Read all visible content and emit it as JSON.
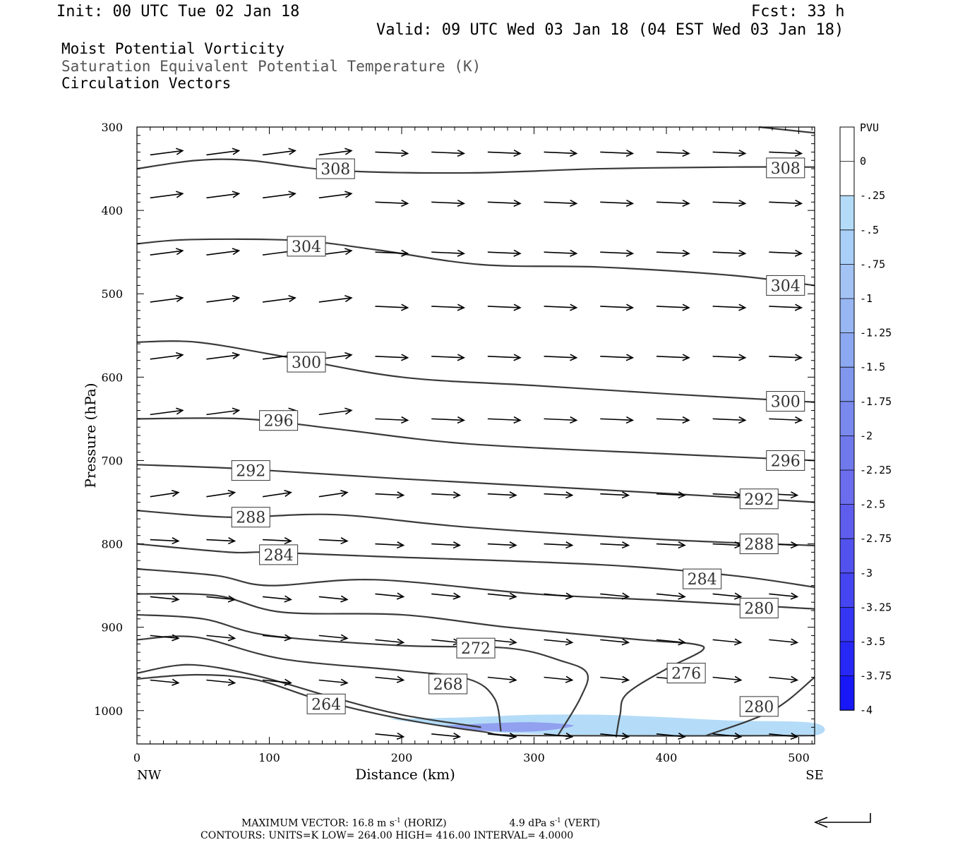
{
  "header": {
    "init": "Init: 00 UTC Tue 02 Jan 18",
    "fcst": "Fcst:   33 h",
    "valid": "Valid: 09 UTC Wed 03 Jan 18 (04 EST Wed 03 Jan 18)",
    "line1": "Moist Potential Vorticity",
    "line2": "Saturation Equivalent Potential Temperature (K)",
    "line3": "Circulation Vectors"
  },
  "footer": {
    "max_prefix": "MAXIMUM VECTOR:  16.8 m s",
    "exp": "-1",
    "horiz": " (HORIZ)",
    "vert_prefix": "4.9 dPa s",
    "vert": " (VERT)",
    "contours": "CONTOURS:  UNITS=K  LOW=  264.00       HIGH=  416.00       INTERVAL=    4.0000"
  },
  "colors": {
    "contour": "#3a3a3a",
    "vector": "#000000",
    "pv_scale": [
      "#ffffff",
      "#ffffff",
      "#b4dcf8",
      "#a9cff8",
      "#a4c3f5",
      "#98b6f2",
      "#8ca8f0",
      "#8197ee",
      "#7a89ee",
      "#7079ec",
      "#6c6cee",
      "#5e5dee",
      "#5252ef",
      "#4545f1",
      "#3535f4",
      "#2727f6",
      "#1717f8"
    ]
  },
  "chart_data": {
    "type": "cross-section",
    "xlabel": "Distance (km)",
    "ylabel": "Pressure (hPa)",
    "xlim": [
      0,
      512
    ],
    "ylim": [
      300,
      1040
    ],
    "x_ticks": [
      0,
      100,
      200,
      300,
      400,
      500
    ],
    "y_ticks": [
      300,
      400,
      500,
      600,
      700,
      800,
      900,
      1000
    ],
    "x_end_labels": [
      "NW",
      "SE"
    ],
    "colorbar": {
      "title": "PVU",
      "labels": [
        "0",
        "-.25",
        "-.5",
        "-.75",
        "-1",
        "-1.25",
        "-1.5",
        "-1.75",
        "-2",
        "-2.25",
        "-2.5",
        "-2.75",
        "-3",
        "-3.25",
        "-3.5",
        "-3.75",
        "-4"
      ]
    },
    "contours": [
      {
        "label": "308",
        "points": [
          [
            0,
            350
          ],
          [
            45,
            340
          ],
          [
            85,
            340
          ],
          [
            150,
            352
          ],
          [
            250,
            355
          ],
          [
            350,
            350
          ],
          [
            450,
            348
          ],
          [
            512,
            348
          ]
        ],
        "labels_at": [
          [
            150,
            350
          ],
          [
            490,
            349
          ]
        ]
      },
      {
        "label": "304",
        "points": [
          [
            0,
            440
          ],
          [
            40,
            435
          ],
          [
            120,
            436
          ],
          [
            180,
            447
          ],
          [
            260,
            465
          ],
          [
            350,
            468
          ],
          [
            450,
            478
          ],
          [
            512,
            490
          ]
        ],
        "labels_at": [
          [
            128,
            443
          ],
          [
            490,
            490
          ]
        ]
      },
      {
        "label": "300",
        "points": [
          [
            0,
            558
          ],
          [
            45,
            558
          ],
          [
            110,
            575
          ],
          [
            200,
            600
          ],
          [
            300,
            610
          ],
          [
            400,
            620
          ],
          [
            512,
            630
          ]
        ],
        "labels_at": [
          [
            128,
            582
          ],
          [
            490,
            629
          ]
        ]
      },
      {
        "label": "296",
        "points": [
          [
            0,
            650
          ],
          [
            80,
            650
          ],
          [
            150,
            662
          ],
          [
            250,
            680
          ],
          [
            400,
            692
          ],
          [
            512,
            700
          ]
        ],
        "labels_at": [
          [
            107,
            652
          ],
          [
            490,
            700
          ]
        ]
      },
      {
        "label": "292",
        "points": [
          [
            0,
            705
          ],
          [
            80,
            710
          ],
          [
            200,
            722
          ],
          [
            350,
            735
          ],
          [
            512,
            750
          ]
        ],
        "labels_at": [
          [
            86,
            712
          ],
          [
            470,
            746
          ]
        ]
      },
      {
        "label": "288",
        "points": [
          [
            0,
            760
          ],
          [
            70,
            768
          ],
          [
            150,
            765
          ],
          [
            250,
            780
          ],
          [
            400,
            795
          ],
          [
            512,
            802
          ]
        ],
        "labels_at": [
          [
            86,
            768
          ],
          [
            470,
            800
          ]
        ]
      },
      {
        "label": "284",
        "points": [
          [
            0,
            800
          ],
          [
            70,
            810
          ],
          [
            100,
            810
          ],
          [
            180,
            815
          ],
          [
            350,
            825
          ],
          [
            450,
            838
          ],
          [
            512,
            852
          ]
        ],
        "labels_at": [
          [
            107,
            813
          ],
          [
            427,
            842
          ]
        ]
      },
      {
        "label": "280",
        "points": [
          [
            0,
            830
          ],
          [
            60,
            838
          ],
          [
            100,
            850
          ],
          [
            180,
            843
          ],
          [
            300,
            860
          ],
          [
            400,
            868
          ],
          [
            512,
            878
          ]
        ],
        "labels_at": [
          [
            470,
            877
          ],
          [
            470,
            995
          ]
        ]
      },
      {
        "label": "276",
        "points": [
          [
            0,
            860
          ],
          [
            60,
            862
          ],
          [
            110,
            882
          ],
          [
            200,
            885
          ],
          [
            280,
            900
          ],
          [
            380,
            915
          ],
          [
            420,
            920
          ],
          [
            427,
            928
          ],
          [
            400,
            950
          ],
          [
            370,
            980
          ],
          [
            365,
            1005
          ],
          [
            362,
            1032
          ]
        ],
        "labels_at": [
          [
            415,
            955
          ]
        ]
      },
      {
        "label": "272",
        "points": [
          [
            0,
            885
          ],
          [
            50,
            890
          ],
          [
            100,
            910
          ],
          [
            200,
            922
          ],
          [
            280,
            925
          ],
          [
            320,
            940
          ],
          [
            340,
            955
          ],
          [
            335,
            985
          ],
          [
            318,
            1030
          ]
        ],
        "labels_at": [
          [
            256,
            925
          ]
        ]
      },
      {
        "label": "268",
        "points": [
          [
            0,
            915
          ],
          [
            45,
            912
          ],
          [
            110,
            938
          ],
          [
            200,
            952
          ],
          [
            250,
            962
          ],
          [
            270,
            985
          ],
          [
            275,
            1025
          ]
        ],
        "labels_at": [
          [
            235,
            968
          ]
        ]
      },
      {
        "label": "264",
        "points": [
          [
            0,
            955
          ],
          [
            40,
            945
          ],
          [
            90,
            958
          ],
          [
            150,
            985
          ],
          [
            200,
            1005
          ],
          [
            260,
            1020
          ]
        ],
        "labels_at": [
          [
            143,
            992
          ]
        ]
      },
      {
        "label": "",
        "points": [
          [
            0,
            962
          ],
          [
            45,
            957
          ],
          [
            90,
            963
          ],
          [
            140,
            988
          ],
          [
            200,
            1010
          ],
          [
            260,
            1025
          ],
          [
            300,
            1030
          ],
          [
            512,
            1030
          ]
        ],
        "labels_at": []
      },
      {
        "label": "",
        "points": [
          [
            430,
            1030
          ],
          [
            480,
            1000
          ],
          [
            512,
            960
          ]
        ],
        "labels_at": []
      },
      {
        "label": "",
        "points": [
          [
            470,
            300
          ],
          [
            512,
            307
          ]
        ],
        "labels_at": []
      }
    ],
    "pv_region": {
      "value": -0.5,
      "points": [
        [
          190,
          1010
        ],
        [
          250,
          1008
        ],
        [
          300,
          1005
        ],
        [
          350,
          1005
        ],
        [
          400,
          1008
        ],
        [
          450,
          1012
        ],
        [
          512,
          1015
        ],
        [
          512,
          1030
        ],
        [
          450,
          1030
        ],
        [
          300,
          1028
        ],
        [
          250,
          1022
        ]
      ]
    },
    "pv_region_dark": {
      "value": -1.5,
      "points": [
        [
          230,
          1018
        ],
        [
          270,
          1015
        ],
        [
          300,
          1014
        ],
        [
          330,
          1018
        ],
        [
          300,
          1025
        ],
        [
          260,
          1024
        ]
      ]
    }
  }
}
